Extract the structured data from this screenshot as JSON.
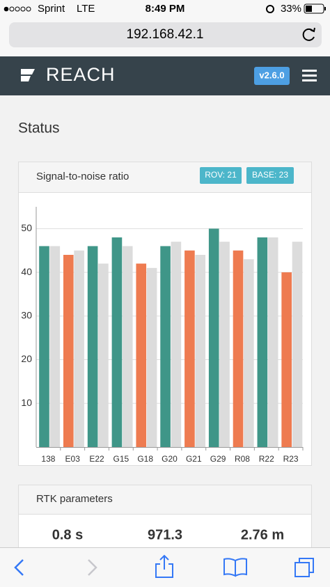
{
  "status_bar": {
    "carrier": "Sprint",
    "network": "LTE",
    "time": "8:49 PM",
    "battery": "33%"
  },
  "browser": {
    "url": "192.168.42.1"
  },
  "header": {
    "logo": "REACH",
    "version": "v2.6.0"
  },
  "page": {
    "title": "Status"
  },
  "snr_card": {
    "title": "Signal-to-noise ratio",
    "rover_badge": "ROV: 21",
    "base_badge": "BASE: 23"
  },
  "chart_data": {
    "type": "bar",
    "categories": [
      "138",
      "E03",
      "E22",
      "G15",
      "G18",
      "G20",
      "G21",
      "G29",
      "R08",
      "R22",
      "R23"
    ],
    "series": [
      {
        "colors": [
          "#3f9688",
          "#ee7b50",
          "#3f9688",
          "#3f9688",
          "#ee7b50",
          "#3f9688",
          "#ee7b50",
          "#3f9688",
          "#ee7b50",
          "#3f9688",
          "#ee7b50"
        ],
        "values": [
          46,
          44,
          46,
          48,
          42,
          46,
          45,
          50,
          45,
          48,
          40
        ]
      },
      {
        "color": "#dcdcdc",
        "values": [
          46,
          45,
          42,
          46,
          41,
          47,
          44,
          47,
          43,
          48,
          47
        ]
      }
    ],
    "ylim": [
      0,
      55
    ],
    "yticks": [
      10,
      20,
      30,
      40,
      50
    ],
    "grid": true
  },
  "rtk_card": {
    "title": "RTK parameters",
    "values": [
      "0.8 s",
      "971.3",
      "2.76 m"
    ]
  }
}
